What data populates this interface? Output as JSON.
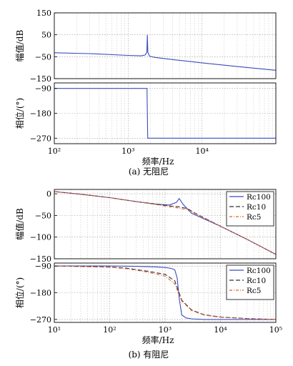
{
  "captions": {
    "a": "(a)  无阻尼",
    "b": "(b)  有阻尼"
  },
  "chart_data": [
    {
      "type": "line",
      "title": "",
      "xlabel": "频率/Hz",
      "ylabel": "幅值/dB",
      "xscale": "log",
      "xlim": [
        100,
        100000
      ],
      "ylim": [
        -150,
        150
      ],
      "yticks": [
        150,
        50,
        -50,
        -150
      ],
      "ytick_labels": [
        "150",
        "50",
        "−50",
        "−150"
      ],
      "xtick_labels": [],
      "grid": true,
      "series": [
        {
          "color": "#3b4cc0",
          "dash": "",
          "x": [
            100,
            300,
            1000,
            1500,
            1700,
            1790,
            1820,
            1850,
            1950,
            2300,
            4000,
            10000,
            30000,
            100000
          ],
          "y": [
            -32,
            -36,
            -44,
            -46,
            -42,
            -30,
            50,
            -30,
            -48,
            -53,
            -63,
            -78,
            -95,
            -112
          ]
        }
      ]
    },
    {
      "type": "line",
      "title": "",
      "xlabel": "频率/Hz",
      "ylabel": "相位/(°)",
      "xscale": "log",
      "xlim": [
        100,
        100000
      ],
      "ylim": [
        -290,
        -70
      ],
      "yticks": [
        -90,
        -180,
        -270
      ],
      "ytick_labels": [
        "−90",
        "−180",
        "−270"
      ],
      "xtick_labels": [
        "10²",
        "10³",
        "10⁴"
      ],
      "grid": true,
      "series": [
        {
          "color": "#3b4cc0",
          "dash": "",
          "x": [
            100,
            1750,
            1800,
            1820,
            1840,
            1850,
            1900,
            100000
          ],
          "y": [
            -90,
            -90,
            -90,
            -180,
            -270,
            -270,
            -270,
            -270
          ]
        }
      ]
    },
    {
      "type": "line",
      "title": "",
      "xlabel": "频率/Hz",
      "ylabel": "幅值/dB",
      "xscale": "log",
      "xlim": [
        10,
        100000
      ],
      "ylim": [
        -150,
        10
      ],
      "yticks": [
        0,
        -50,
        -100,
        -150
      ],
      "ytick_labels": [
        "0",
        "−50",
        "−100",
        "−150"
      ],
      "xtick_labels": [],
      "grid": true,
      "legend": "top-right",
      "series": [
        {
          "name": "Rc100",
          "color": "#3b4cc0",
          "dash": "",
          "x": [
            10,
            30,
            100,
            300,
            700,
            1200,
            1600,
            1800,
            2100,
            3000,
            10000,
            30000,
            100000
          ],
          "y": [
            5,
            -1,
            -9,
            -18,
            -24,
            -26,
            -20,
            -11,
            -24,
            -45,
            -75,
            -105,
            -140
          ]
        },
        {
          "name": "Rc10",
          "color": "#333333",
          "dash": "6 3",
          "x": [
            10,
            30,
            100,
            300,
            700,
            1200,
            1800,
            2500,
            3500,
            10000,
            30000,
            100000
          ],
          "y": [
            5,
            -1,
            -9,
            -18,
            -24,
            -28,
            -30,
            -34,
            -45,
            -75,
            -105,
            -140
          ]
        },
        {
          "name": "Rc5",
          "color": "#e06030",
          "dash": "4 2 1 2",
          "x": [
            10,
            30,
            100,
            300,
            700,
            1200,
            1800,
            2500,
            3500,
            10000,
            30000,
            100000
          ],
          "y": [
            5,
            -1,
            -9,
            -18,
            -25,
            -30,
            -33,
            -37,
            -46,
            -75,
            -105,
            -140
          ]
        }
      ]
    },
    {
      "type": "line",
      "title": "",
      "xlabel": "频率/Hz",
      "ylabel": "相位/(°)",
      "xscale": "log",
      "xlim": [
        10,
        100000
      ],
      "ylim": [
        -280,
        -80
      ],
      "yticks": [
        -90,
        -180,
        -270
      ],
      "ytick_labels": [
        "−90",
        "−180",
        "−270"
      ],
      "xtick_labels": [
        "10¹",
        "10²",
        "10³",
        "10⁴",
        "10⁵"
      ],
      "grid": true,
      "legend": "top-right",
      "series": [
        {
          "name": "Rc100",
          "color": "#3b4cc0",
          "dash": "",
          "x": [
            10,
            100,
            300,
            700,
            1000,
            1300,
            1500,
            1650,
            1800,
            2000,
            2400,
            3000,
            5000,
            20000,
            100000
          ],
          "y": [
            -90,
            -90,
            -91,
            -93,
            -95,
            -98,
            -103,
            -130,
            -200,
            -255,
            -265,
            -268,
            -270,
            -270,
            -270
          ]
        },
        {
          "name": "Rc10",
          "color": "#333333",
          "dash": "6 3",
          "x": [
            10,
            100,
            200,
            300,
            500,
            1000,
            1500,
            2000,
            3000,
            5000,
            10000,
            30000,
            100000
          ],
          "y": [
            -90,
            -93,
            -97,
            -102,
            -108,
            -118,
            -140,
            -205,
            -238,
            -254,
            -262,
            -267,
            -270
          ]
        },
        {
          "name": "Rc5",
          "color": "#e06030",
          "dash": "4 2 1 2",
          "x": [
            10,
            100,
            200,
            300,
            500,
            1000,
            1500,
            2000,
            3000,
            5000,
            10000,
            30000,
            100000
          ],
          "y": [
            -90,
            -94,
            -99,
            -104,
            -111,
            -124,
            -150,
            -208,
            -240,
            -255,
            -263,
            -267,
            -270
          ]
        }
      ]
    }
  ]
}
